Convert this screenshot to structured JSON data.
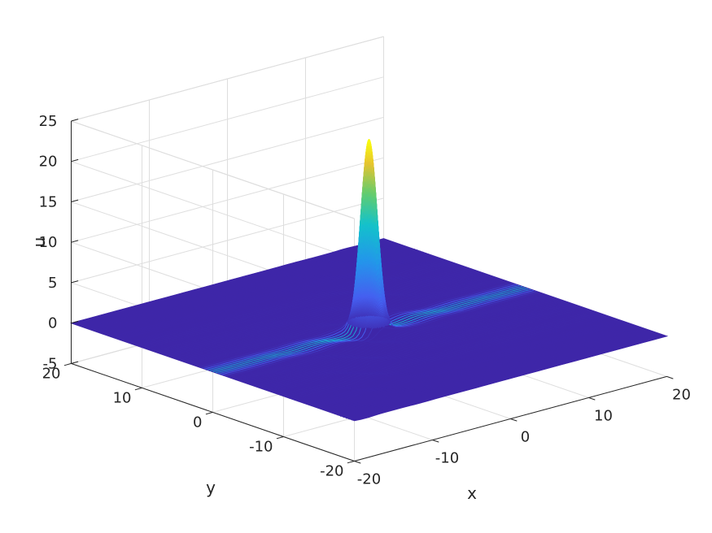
{
  "chart_data": {
    "type": "surface",
    "title": "",
    "xlabel": "x",
    "ylabel": "y",
    "zlabel": "u",
    "xlim": [
      -20,
      20
    ],
    "ylim": [
      -20,
      20
    ],
    "zlim": [
      -5,
      25
    ],
    "xticks": [
      -20,
      -10,
      0,
      10,
      20
    ],
    "yticks": [
      -20,
      -10,
      0,
      10,
      20
    ],
    "zticks": [
      -5,
      0,
      5,
      10,
      15,
      20,
      25
    ],
    "xtick_labels": [
      "-20",
      "-10",
      "0",
      "10",
      "20"
    ],
    "ytick_labels": [
      "-20",
      "-10",
      "0",
      "10",
      "20"
    ],
    "ztick_labels": [
      "-5",
      "0",
      "5",
      "10",
      "15",
      "20",
      "25"
    ],
    "grid": true,
    "colormap": "parula",
    "peak": {
      "x": 0,
      "y": 0,
      "u": 23.2
    },
    "baseline_u": 0,
    "surface_description_values": {
      "grid_min": -20,
      "grid_max": 20
    }
  },
  "colors": {
    "base": "#3e26a8",
    "mid": "#14c2cb",
    "high": "#e6c430",
    "top": "#f9fb0e"
  }
}
